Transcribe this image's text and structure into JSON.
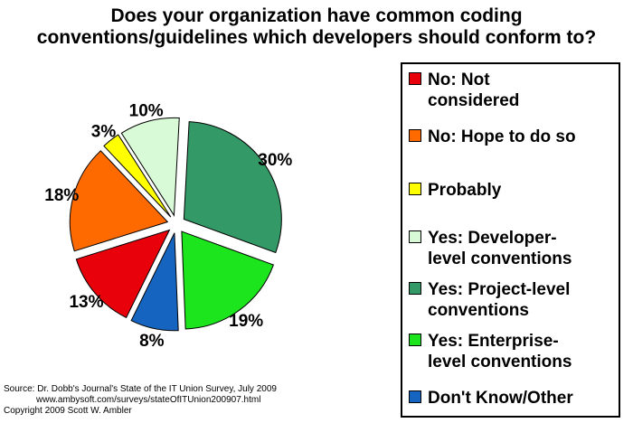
{
  "chart_data": {
    "type": "pie",
    "title_lines": [
      "Does your organization have common coding",
      "conventions/guidelines which developers should conform to?"
    ],
    "slices": [
      {
        "label": "No: Not considered",
        "value": 13,
        "display": "13%",
        "color": "#e8000a"
      },
      {
        "label": "No: Hope to do so",
        "value": 18,
        "display": "18%",
        "color": "#ff6a00"
      },
      {
        "label": "Probably",
        "value": 3,
        "display": "3%",
        "color": "#ffff00"
      },
      {
        "label": "Yes: Developer-level conventions",
        "value": 10,
        "display": "10%",
        "color": "#d9fad6"
      },
      {
        "label": "Yes: Project-level conventions",
        "value": 30,
        "display": "30%",
        "color": "#339966"
      },
      {
        "label": "Yes: Enterprise-level conventions",
        "value": 19,
        "display": "19%",
        "color": "#1de51d"
      },
      {
        "label": "Don't Know/Other",
        "value": 8,
        "display": "8%",
        "color": "#1565c0"
      }
    ],
    "legend_position": "right"
  },
  "legend_lines": [
    [
      "No: Not",
      "considered"
    ],
    [
      "No: Hope to do so"
    ],
    [
      "Probably"
    ],
    [
      "Yes: Developer-",
      "level conventions"
    ],
    [
      "Yes: Project-level",
      "conventions"
    ],
    [
      "Yes: Enterprise-",
      "level conventions"
    ],
    [
      "Don't Know/Other"
    ]
  ],
  "source": {
    "line1": "Source: Dr. Dobb's Journal's State of the IT Union Survey, July 2009",
    "line2": "www.ambysoft.com/surveys/stateOfITUnion200907.html",
    "line3": "Copyright 2009 Scott W. Ambler"
  }
}
